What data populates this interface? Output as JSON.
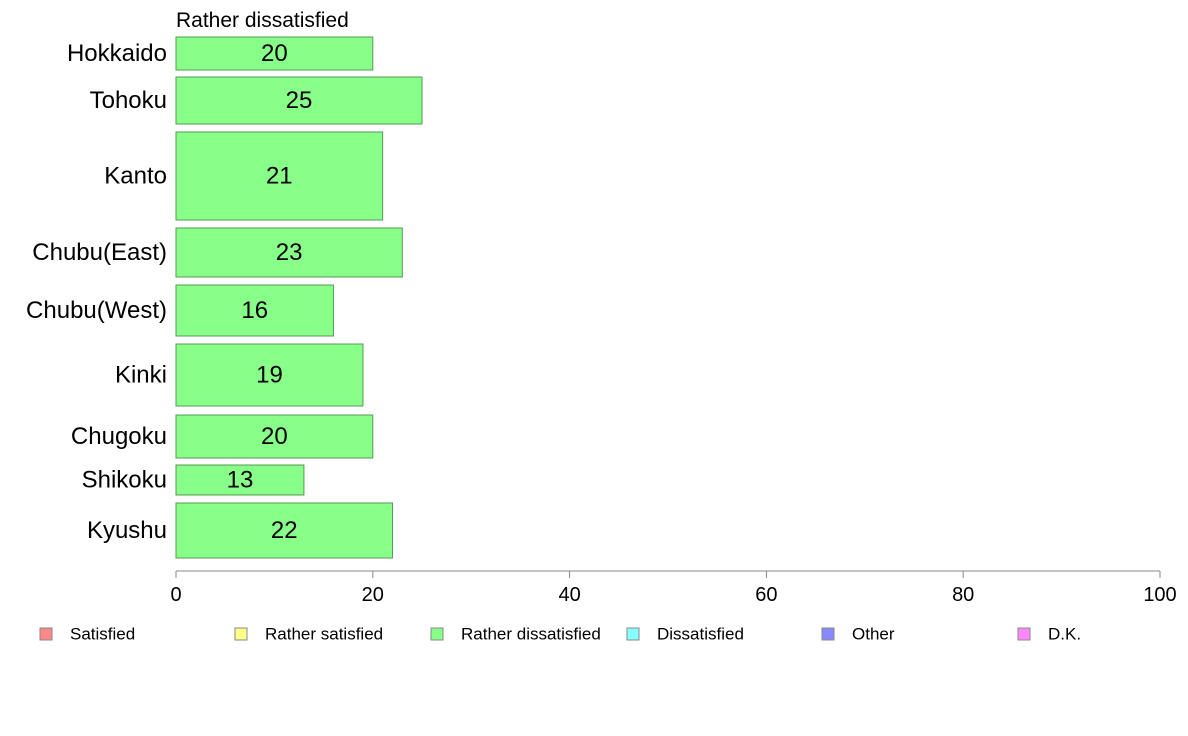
{
  "chart_data": {
    "type": "bar",
    "orientation": "horizontal",
    "title": "Rather dissatisfied",
    "categories": [
      "Hokkaido",
      "Tohoku",
      "Kanto",
      "Chubu(East)",
      "Chubu(West)",
      "Kinki",
      "Chugoku",
      "Shikoku",
      "Kyushu"
    ],
    "values": [
      20,
      25,
      21,
      23,
      16,
      19,
      20,
      13,
      22
    ],
    "bar_value_labels": [
      "20",
      "25",
      "21",
      "23",
      "16",
      "19",
      "20",
      "13",
      "22"
    ],
    "xlim": [
      0,
      100
    ],
    "x_ticks": [
      0,
      20,
      40,
      60,
      80,
      100
    ],
    "x_tick_labels": [
      "0",
      "20",
      "40",
      "60",
      "80",
      "100"
    ],
    "bar_color": "#88ff88",
    "bar_edge_color": "#559955",
    "grid": false,
    "legend_position": "bottom",
    "legend": [
      {
        "label": "Satisfied",
        "color": "#ff8888"
      },
      {
        "label": "Rather satisfied",
        "color": "#ffff88"
      },
      {
        "label": "Rather dissatisfied",
        "color": "#88ff88"
      },
      {
        "label": "Dissatisfied",
        "color": "#88ffff"
      },
      {
        "label": "Other",
        "color": "#8888ff"
      },
      {
        "label": "D.K.",
        "color": "#ff88ff"
      }
    ]
  }
}
